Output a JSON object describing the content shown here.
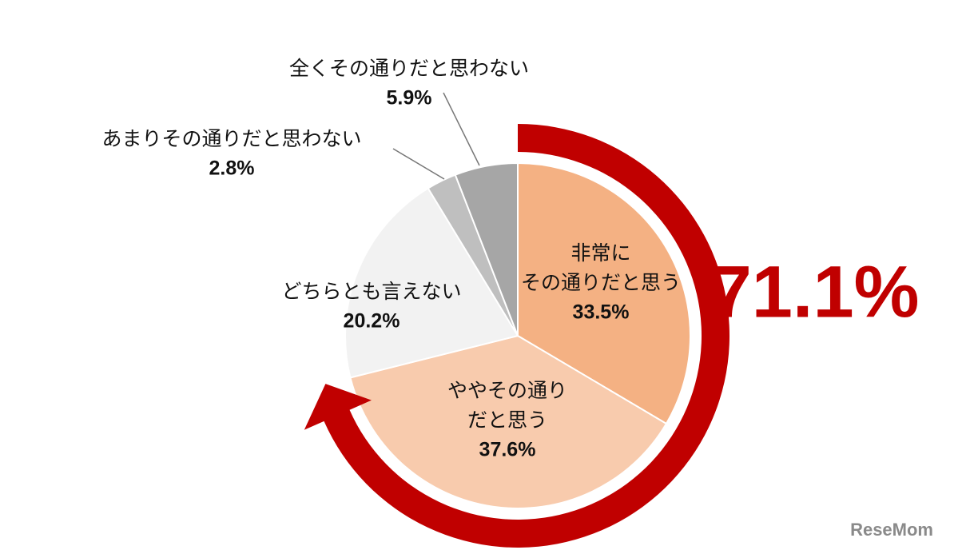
{
  "chart_data": {
    "type": "pie",
    "categories": [
      [
        "非常に",
        "その通りだと思う"
      ],
      [
        "ややその通り",
        "だと思う"
      ],
      [
        "どちらとも言えない"
      ],
      [
        "あまりその通りだと思わない"
      ],
      [
        "全くその通りだと思わない"
      ]
    ],
    "values": [
      33.5,
      37.6,
      20.2,
      2.8,
      5.9
    ],
    "value_labels": [
      "33.5%",
      "37.6%",
      "20.2%",
      "2.8%",
      "5.9%"
    ],
    "colors": [
      "#f4b183",
      "#f8cbad",
      "#f2f2f2",
      "#bfbfbf",
      "#a6a6a6"
    ],
    "annotation": {
      "value": 71.1,
      "label": "71.1%",
      "color": "#c00000"
    },
    "watermark": "ReseMom"
  }
}
